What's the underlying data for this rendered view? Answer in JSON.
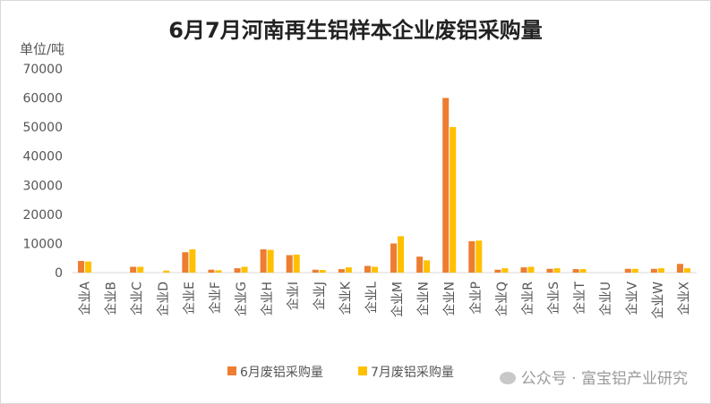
{
  "chart_data": {
    "type": "bar",
    "title": "6月7月河南再生铝样本企业废铝采购量",
    "ylabel": "单位/吨",
    "ylim": [
      0,
      70000
    ],
    "yticks": [
      0,
      10000,
      20000,
      30000,
      40000,
      50000,
      60000,
      70000
    ],
    "categories": [
      "企业A",
      "企业B",
      "企业C",
      "企业D",
      "企业E",
      "企业F",
      "企业G",
      "企业H",
      "企业I",
      "企业J",
      "企业K",
      "企业L",
      "企业M",
      "企业N",
      "企业N",
      "企业P",
      "企业Q",
      "企业R",
      "企业S",
      "企业T",
      "企业U",
      "企业V",
      "企业W",
      "企业X"
    ],
    "series": [
      {
        "name": "6月废铝采购量",
        "color": "#ed7d31",
        "values": [
          4000,
          0,
          2000,
          0,
          7000,
          1000,
          1500,
          8000,
          6000,
          1000,
          1200,
          2300,
          10000,
          5500,
          60000,
          10800,
          1000,
          1800,
          1300,
          1200,
          0,
          1300,
          1300,
          3000
        ]
      },
      {
        "name": "7月废铝采购量",
        "color": "#ffc000",
        "values": [
          3800,
          0,
          2000,
          700,
          8000,
          800,
          2000,
          7800,
          6200,
          900,
          1800,
          2000,
          12500,
          4200,
          50000,
          11000,
          1500,
          2000,
          1500,
          1200,
          0,
          1300,
          1500,
          1500
        ]
      }
    ],
    "legend": "bottom-right"
  },
  "watermark": "公众号 · 富宝铝产业研究"
}
